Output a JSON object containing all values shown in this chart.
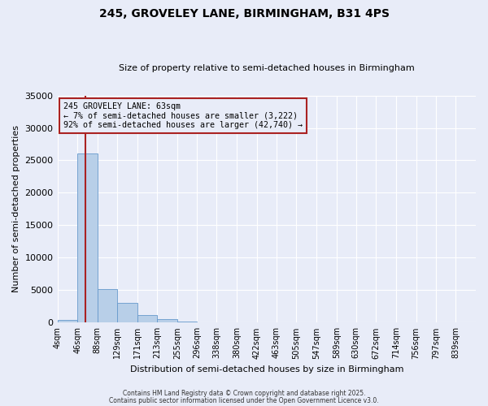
{
  "title1": "245, GROVELEY LANE, BIRMINGHAM, B31 4PS",
  "title2": "Size of property relative to semi-detached houses in Birmingham",
  "xlabel": "Distribution of semi-detached houses by size in Birmingham",
  "ylabel": "Number of semi-detached properties",
  "bins": [
    "4sqm",
    "46sqm",
    "88sqm",
    "129sqm",
    "171sqm",
    "213sqm",
    "255sqm",
    "296sqm",
    "338sqm",
    "380sqm",
    "422sqm",
    "463sqm",
    "505sqm",
    "547sqm",
    "589sqm",
    "630sqm",
    "672sqm",
    "714sqm",
    "756sqm",
    "797sqm",
    "839sqm"
  ],
  "bin_edges": [
    4,
    46,
    88,
    129,
    171,
    213,
    255,
    296,
    338,
    380,
    422,
    463,
    505,
    547,
    589,
    630,
    672,
    714,
    756,
    797,
    839
  ],
  "bar_heights": [
    400,
    26100,
    5200,
    3000,
    1200,
    600,
    200,
    100,
    50,
    20,
    10,
    5,
    3,
    2,
    1,
    1,
    0,
    0,
    0,
    0
  ],
  "bar_color": "#b8cfe8",
  "bar_edge_color": "#6699cc",
  "vline_x": 63,
  "vline_color": "#aa2222",
  "annotation_title": "245 GROVELEY LANE: 63sqm",
  "annotation_line1": "← 7% of semi-detached houses are smaller (3,222)",
  "annotation_line2": "92% of semi-detached houses are larger (42,740) →",
  "annotation_box_edge_color": "#aa2222",
  "ylim": [
    0,
    35000
  ],
  "yticks": [
    0,
    5000,
    10000,
    15000,
    20000,
    25000,
    30000,
    35000
  ],
  "plot_bg_color": "#e8ecf8",
  "fig_bg_color": "#e8ecf8",
  "grid_color": "#ffffff",
  "footer1": "Contains HM Land Registry data © Crown copyright and database right 2025.",
  "footer2": "Contains public sector information licensed under the Open Government Licence v3.0."
}
